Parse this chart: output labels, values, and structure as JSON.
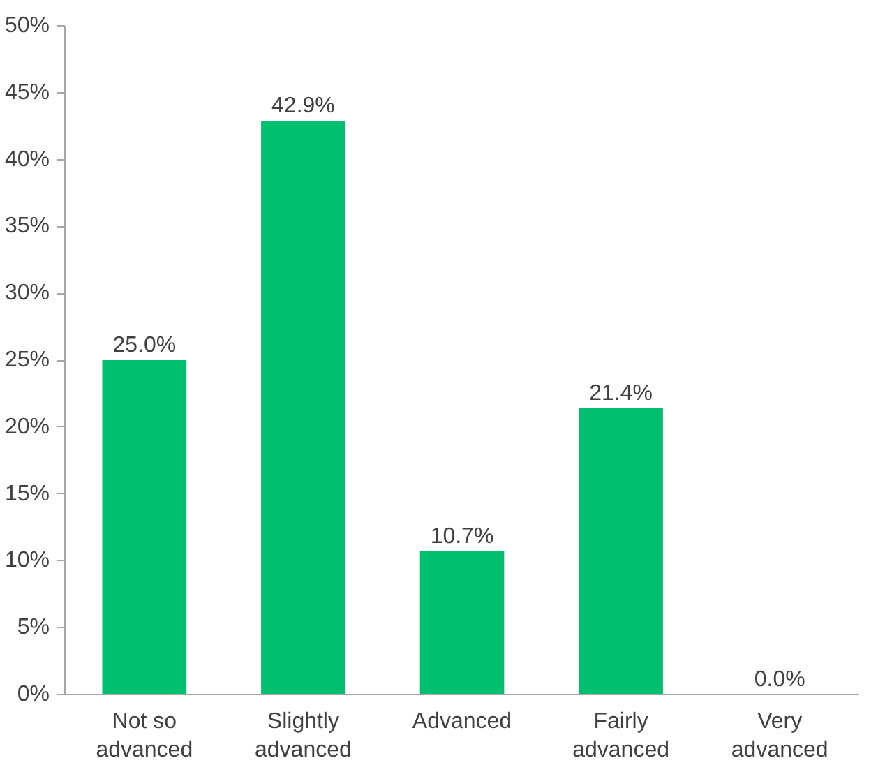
{
  "chart_data": {
    "type": "bar",
    "categories": [
      "Not so\nadvanced",
      "Slightly\nadvanced",
      "Advanced",
      "Fairly\nadvanced",
      "Very\nadvanced"
    ],
    "values": [
      25.0,
      42.9,
      10.7,
      21.4,
      0.0
    ],
    "value_labels": [
      "25.0%",
      "42.9%",
      "10.7%",
      "21.4%",
      "0.0%"
    ],
    "color": "#00bf6f",
    "ylim": [
      0,
      50
    ],
    "yticks": [
      {
        "value": 0,
        "label": "0%"
      },
      {
        "value": 5,
        "label": "5%"
      },
      {
        "value": 10,
        "label": "10%"
      },
      {
        "value": 15,
        "label": "15%"
      },
      {
        "value": 20,
        "label": "20%"
      },
      {
        "value": 25,
        "label": "25%"
      },
      {
        "value": 30,
        "label": "30%"
      },
      {
        "value": 35,
        "label": "35%"
      },
      {
        "value": 40,
        "label": "40%"
      },
      {
        "value": 45,
        "label": "45%"
      },
      {
        "value": 50,
        "label": "50%"
      }
    ],
    "grid": false
  }
}
